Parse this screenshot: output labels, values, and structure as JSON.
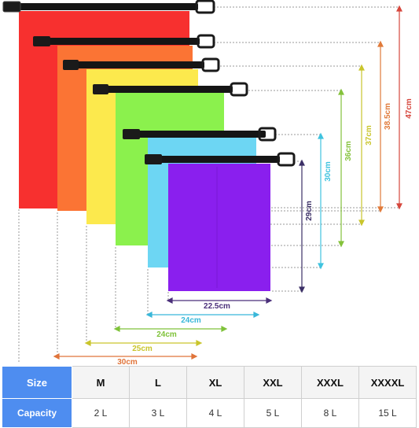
{
  "bags": [
    {
      "color": "#f7302f",
      "name": "red"
    },
    {
      "color": "#fb7434",
      "name": "orange"
    },
    {
      "color": "#fce94d",
      "name": "yellow"
    },
    {
      "color": "#8bf14d",
      "name": "green"
    },
    {
      "color": "#6dd6f3",
      "name": "blue"
    },
    {
      "color": "#8a1fee",
      "name": "purple"
    }
  ],
  "heights": [
    {
      "label": "47cm",
      "color": "#d6473d"
    },
    {
      "label": "38.5cm",
      "color": "#e07a3a"
    },
    {
      "label": "37cm",
      "color": "#c9c52c"
    },
    {
      "label": "36cm",
      "color": "#84c23b"
    },
    {
      "label": "30cm",
      "color": "#3fc3df"
    },
    {
      "label": "29cm",
      "color": "#3b2f66"
    }
  ],
  "widths": [
    {
      "label": "22.5cm",
      "color": "#4a2f7a"
    },
    {
      "label": "24cm",
      "color": "#39b7d9"
    },
    {
      "label": "24cm",
      "color": "#7fc23a"
    },
    {
      "label": "25cm",
      "color": "#c9c52c"
    },
    {
      "label": "30cm",
      "color": "#e0743a"
    }
  ],
  "table": {
    "size_header": "Size",
    "capacity_header": "Capacity",
    "sizes": [
      "M",
      "L",
      "XL",
      "XXL",
      "XXXL",
      "XXXXL"
    ],
    "capacities": [
      "2 L",
      "3 L",
      "4 L",
      "5 L",
      "8 L",
      "15 L"
    ],
    "header_color": "#4e8df0"
  }
}
